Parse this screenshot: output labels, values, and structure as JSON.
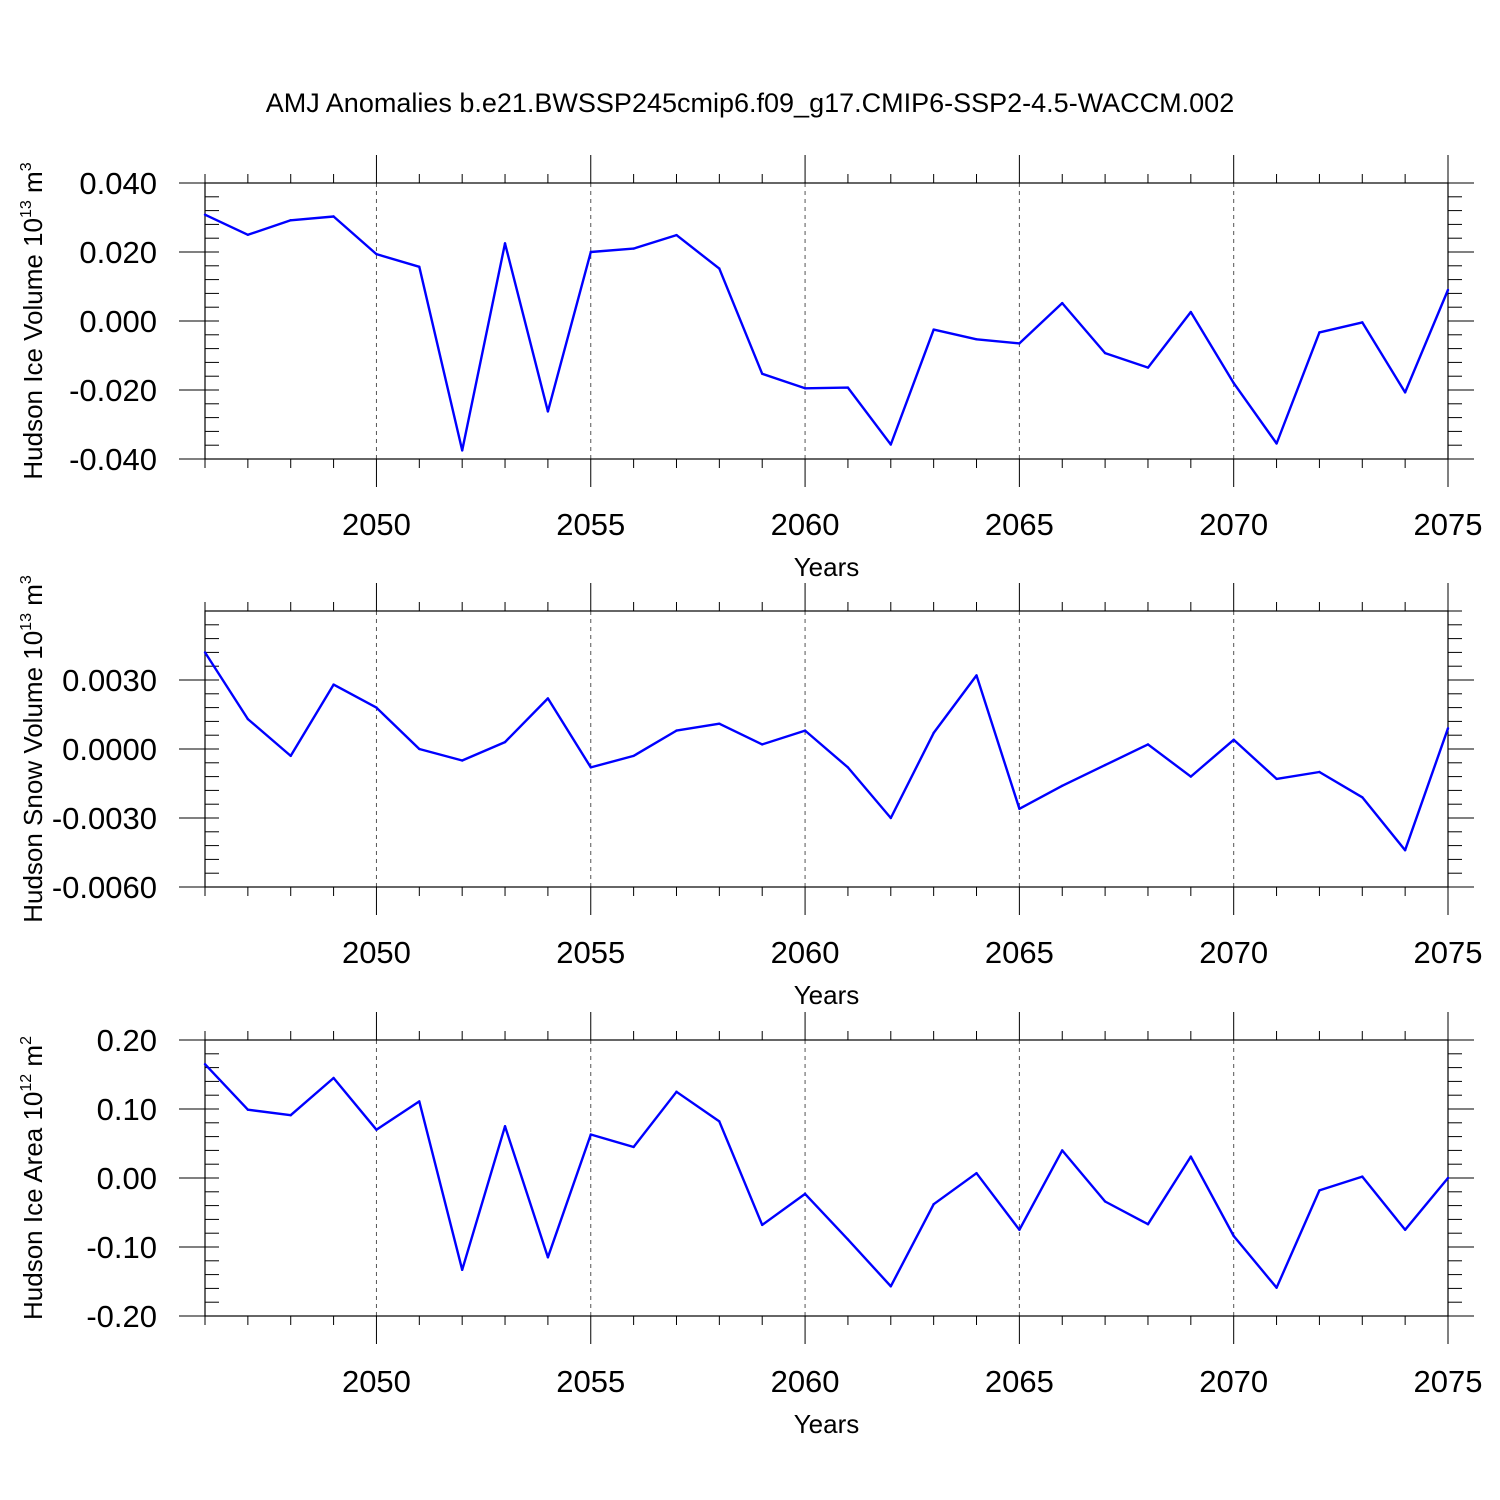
{
  "title": "AMJ Anomalies b.e21.BWSSP245cmip6.f09_g17.CMIP6-SSP2-4.5-WACCM.002",
  "chart_data": [
    {
      "type": "line",
      "ylabel": "Hudson Ice Volume 10",
      "ylabel_exp": "13",
      "ylabel_unit": " m",
      "ylabel_unit_exp": "3",
      "xlabel": "Years",
      "xlim": [
        2046,
        2075
      ],
      "ylim": [
        -0.04,
        0.04
      ],
      "yticks": [
        -0.04,
        -0.02,
        0.0,
        0.02,
        0.04
      ],
      "ytick_labels": [
        "-0.040",
        "-0.020",
        "0.000",
        "0.020",
        "0.040"
      ],
      "yminor_step": 0.004,
      "xticks": [
        2050,
        2055,
        2060,
        2065,
        2070,
        2075
      ],
      "xtick_labels": [
        "2050",
        "2055",
        "2060",
        "2065",
        "2070",
        "2075"
      ],
      "grid": "x-dashed",
      "line_color": "#0000ff",
      "x": [
        2046,
        2047,
        2048,
        2049,
        2050,
        2051,
        2052,
        2053,
        2054,
        2055,
        2056,
        2057,
        2058,
        2059,
        2060,
        2061,
        2062,
        2063,
        2064,
        2065,
        2066,
        2067,
        2068,
        2069,
        2070,
        2071,
        2072,
        2073,
        2074,
        2075
      ],
      "values": [
        0.0308,
        0.025,
        0.0292,
        0.0303,
        0.0194,
        0.0157,
        -0.0375,
        0.0225,
        -0.0262,
        0.02,
        0.021,
        0.0249,
        0.0152,
        -0.0153,
        -0.0195,
        -0.0193,
        -0.0358,
        -0.0025,
        -0.0053,
        -0.0065,
        0.0052,
        -0.0093,
        -0.0135,
        0.0026,
        -0.018,
        -0.0355,
        -0.0033,
        -0.0004,
        -0.0207,
        0.009
      ]
    },
    {
      "type": "line",
      "ylabel": "Hudson Snow Volume 10",
      "ylabel_exp": "13",
      "ylabel_unit": " m",
      "ylabel_unit_exp": "3",
      "xlabel": "Years",
      "xlim": [
        2046,
        2075
      ],
      "ylim": [
        -0.006,
        0.006
      ],
      "yticks": [
        -0.006,
        -0.003,
        0.0,
        0.003
      ],
      "ytick_labels": [
        "-0.0060",
        "-0.0030",
        "0.0000",
        "0.0030"
      ],
      "yminor_step": 0.0006,
      "xticks": [
        2050,
        2055,
        2060,
        2065,
        2070,
        2075
      ],
      "xtick_labels": [
        "2050",
        "2055",
        "2060",
        "2065",
        "2070",
        "2075"
      ],
      "grid": "x-dashed",
      "line_color": "#0000ff",
      "x": [
        2046,
        2047,
        2048,
        2049,
        2050,
        2051,
        2052,
        2053,
        2054,
        2055,
        2056,
        2057,
        2058,
        2059,
        2060,
        2061,
        2062,
        2063,
        2064,
        2065,
        2066,
        2067,
        2068,
        2069,
        2070,
        2071,
        2072,
        2073,
        2074,
        2075
      ],
      "values": [
        0.0042,
        0.0013,
        -0.0003,
        0.0028,
        0.0018,
        0.0,
        -0.0005,
        0.0003,
        0.0022,
        -0.0008,
        -0.0003,
        0.0008,
        0.0011,
        0.0002,
        0.0008,
        -0.0008,
        -0.003,
        0.0007,
        0.0032,
        -0.0026,
        -0.0016,
        -0.0007,
        0.0002,
        -0.0012,
        0.0004,
        -0.0013,
        -0.001,
        -0.0021,
        -0.0044,
        0.0009
      ]
    },
    {
      "type": "line",
      "ylabel": "Hudson Ice Area 10",
      "ylabel_exp": "12",
      "ylabel_unit": " m",
      "ylabel_unit_exp": "2",
      "xlabel": "Years",
      "xlim": [
        2046,
        2075
      ],
      "ylim": [
        -0.2,
        0.2
      ],
      "yticks": [
        -0.2,
        -0.1,
        0.0,
        0.1,
        0.2
      ],
      "ytick_labels": [
        "-0.20",
        "-0.10",
        "0.00",
        "0.10",
        "0.20"
      ],
      "yminor_step": 0.02,
      "xticks": [
        2050,
        2055,
        2060,
        2065,
        2070,
        2075
      ],
      "xtick_labels": [
        "2050",
        "2055",
        "2060",
        "2065",
        "2070",
        "2075"
      ],
      "grid": "x-dashed",
      "line_color": "#0000ff",
      "x": [
        2046,
        2047,
        2048,
        2049,
        2050,
        2051,
        2052,
        2053,
        2054,
        2055,
        2056,
        2057,
        2058,
        2059,
        2060,
        2061,
        2062,
        2063,
        2064,
        2065,
        2066,
        2067,
        2068,
        2069,
        2070,
        2071,
        2072,
        2073,
        2074,
        2075
      ],
      "values": [
        0.165,
        0.099,
        0.091,
        0.145,
        0.07,
        0.111,
        -0.133,
        0.075,
        -0.115,
        0.063,
        0.045,
        0.125,
        0.082,
        -0.068,
        -0.023,
        -0.089,
        -0.157,
        -0.038,
        0.007,
        -0.075,
        0.04,
        -0.034,
        -0.067,
        0.031,
        -0.084,
        -0.159,
        -0.018,
        0.002,
        -0.075,
        0.0
      ]
    }
  ]
}
